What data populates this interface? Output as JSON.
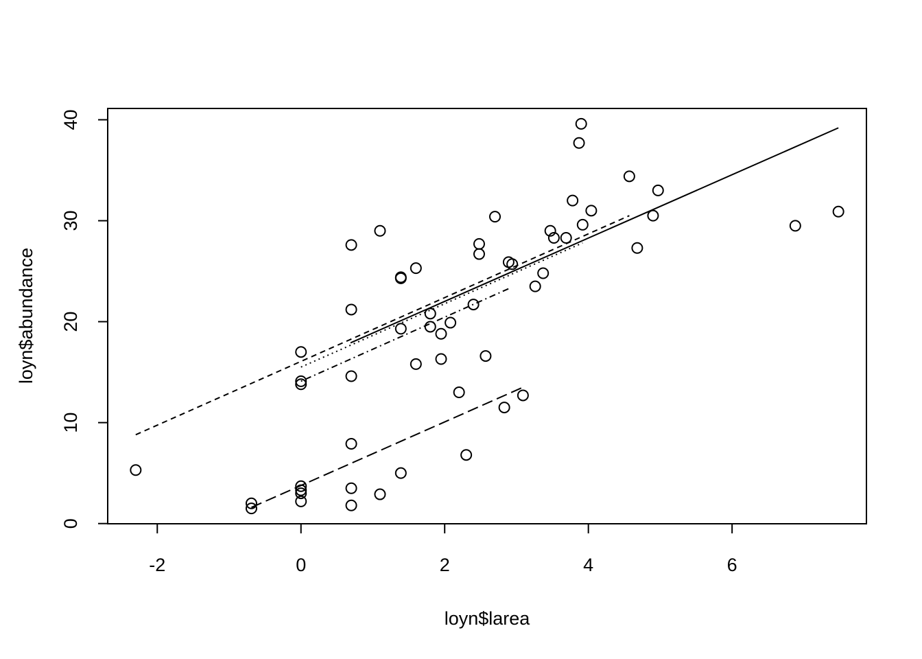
{
  "chart_data": {
    "type": "scatter",
    "x_label": "loyn$larea",
    "y_label": "loyn$abundance",
    "xlim": [
      -2.69,
      7.87
    ],
    "ylim": [
      -0.02,
      41.12
    ],
    "xticks": [
      -2,
      0,
      2,
      4,
      6
    ],
    "yticks": [
      0,
      10,
      20,
      30,
      40
    ],
    "color": "#000000",
    "x": [
      -2.3,
      -0.69,
      -0.69,
      0,
      0,
      0,
      0,
      0,
      0,
      0,
      0.7,
      0.7,
      0.7,
      0.7,
      0.7,
      0.7,
      1.1,
      1.1,
      1.39,
      1.39,
      1.39,
      1.39,
      1.6,
      1.6,
      1.8,
      1.8,
      1.95,
      1.95,
      2.08,
      2.2,
      2.3,
      2.4,
      2.48,
      2.48,
      2.57,
      2.7,
      2.83,
      2.89,
      2.94,
      3.09,
      3.26,
      3.37,
      3.47,
      3.52,
      3.69,
      3.78,
      3.87,
      3.9,
      3.92,
      4.04,
      4.57,
      4.68,
      4.9,
      4.97,
      6.88,
      7.48
    ],
    "y": [
      5.3,
      2.0,
      1.5,
      17.0,
      14.1,
      13.8,
      3.7,
      3.3,
      3.0,
      2.2,
      27.6,
      21.2,
      14.6,
      7.9,
      3.5,
      1.8,
      29.0,
      2.9,
      24.4,
      24.3,
      19.3,
      5.0,
      25.3,
      15.8,
      20.8,
      19.5,
      18.8,
      16.3,
      19.9,
      13.0,
      6.8,
      21.7,
      27.7,
      26.7,
      16.6,
      30.4,
      11.5,
      25.9,
      25.7,
      12.7,
      23.5,
      24.8,
      29.0,
      28.3,
      28.3,
      32.0,
      37.7,
      39.6,
      29.6,
      31.0,
      34.4,
      27.3,
      30.5,
      33.0,
      29.5,
      30.9
    ],
    "lines": [
      {
        "x": [
          0.69,
          7.48
        ],
        "y": [
          17.9,
          39.2
        ],
        "dash": "solid"
      },
      {
        "x": [
          -2.3,
          4.57
        ],
        "y": [
          8.8,
          30.5
        ],
        "dash": "dashed"
      },
      {
        "x": [
          0,
          3.92
        ],
        "y": [
          15.5,
          27.8
        ],
        "dash": "dotted"
      },
      {
        "x": [
          0,
          2.9
        ],
        "y": [
          14.1,
          23.3
        ],
        "dash": "dotdash"
      },
      {
        "x": [
          -0.69,
          3.09
        ],
        "y": [
          1.6,
          13.5
        ],
        "dash": "longdash"
      }
    ]
  }
}
